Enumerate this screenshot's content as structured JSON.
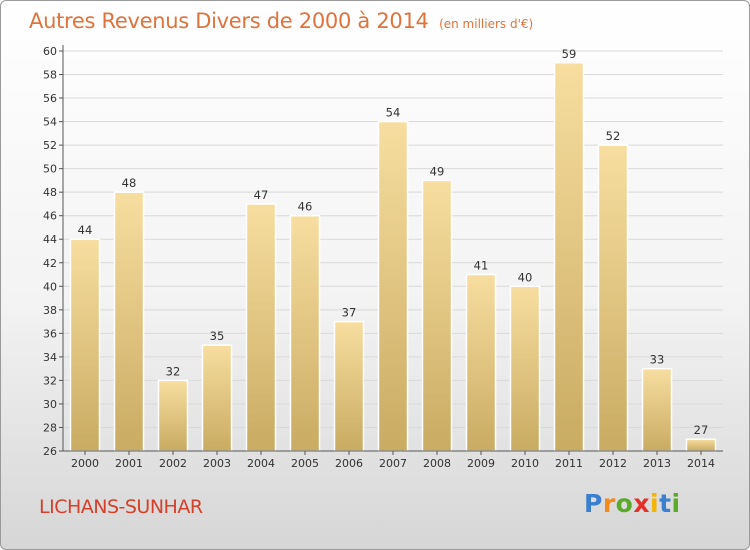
{
  "title": "Autres Revenus Divers de 2000 à 2014",
  "subtitle": "(en milliers d'€)",
  "commune": "LICHANS-SUNHAR",
  "logo": {
    "letters": [
      "P",
      "r",
      "o",
      "x",
      "i",
      "t",
      "i"
    ],
    "colors": [
      "#3a7fd0",
      "#f08a1c",
      "#5aaa2a",
      "#e5302a",
      "#f4b400",
      "#3a7fd0",
      "#5aaa2a"
    ]
  },
  "colors": {
    "bar_light": "#f7dea0",
    "bar_dark": "#c9ab62",
    "grid": "#d9d9d9"
  },
  "chart_data": {
    "type": "bar",
    "categories": [
      "2000",
      "2001",
      "2002",
      "2003",
      "2004",
      "2005",
      "2006",
      "2007",
      "2008",
      "2009",
      "2010",
      "2011",
      "2012",
      "2013",
      "2014"
    ],
    "values": [
      44,
      48,
      32,
      35,
      47,
      46,
      37,
      54,
      49,
      41,
      40,
      59,
      52,
      33,
      27
    ],
    "ylim": [
      26,
      60
    ],
    "yticks": [
      26,
      28,
      30,
      32,
      34,
      36,
      38,
      40,
      42,
      44,
      46,
      48,
      50,
      52,
      54,
      56,
      58,
      60
    ],
    "grid": true
  }
}
